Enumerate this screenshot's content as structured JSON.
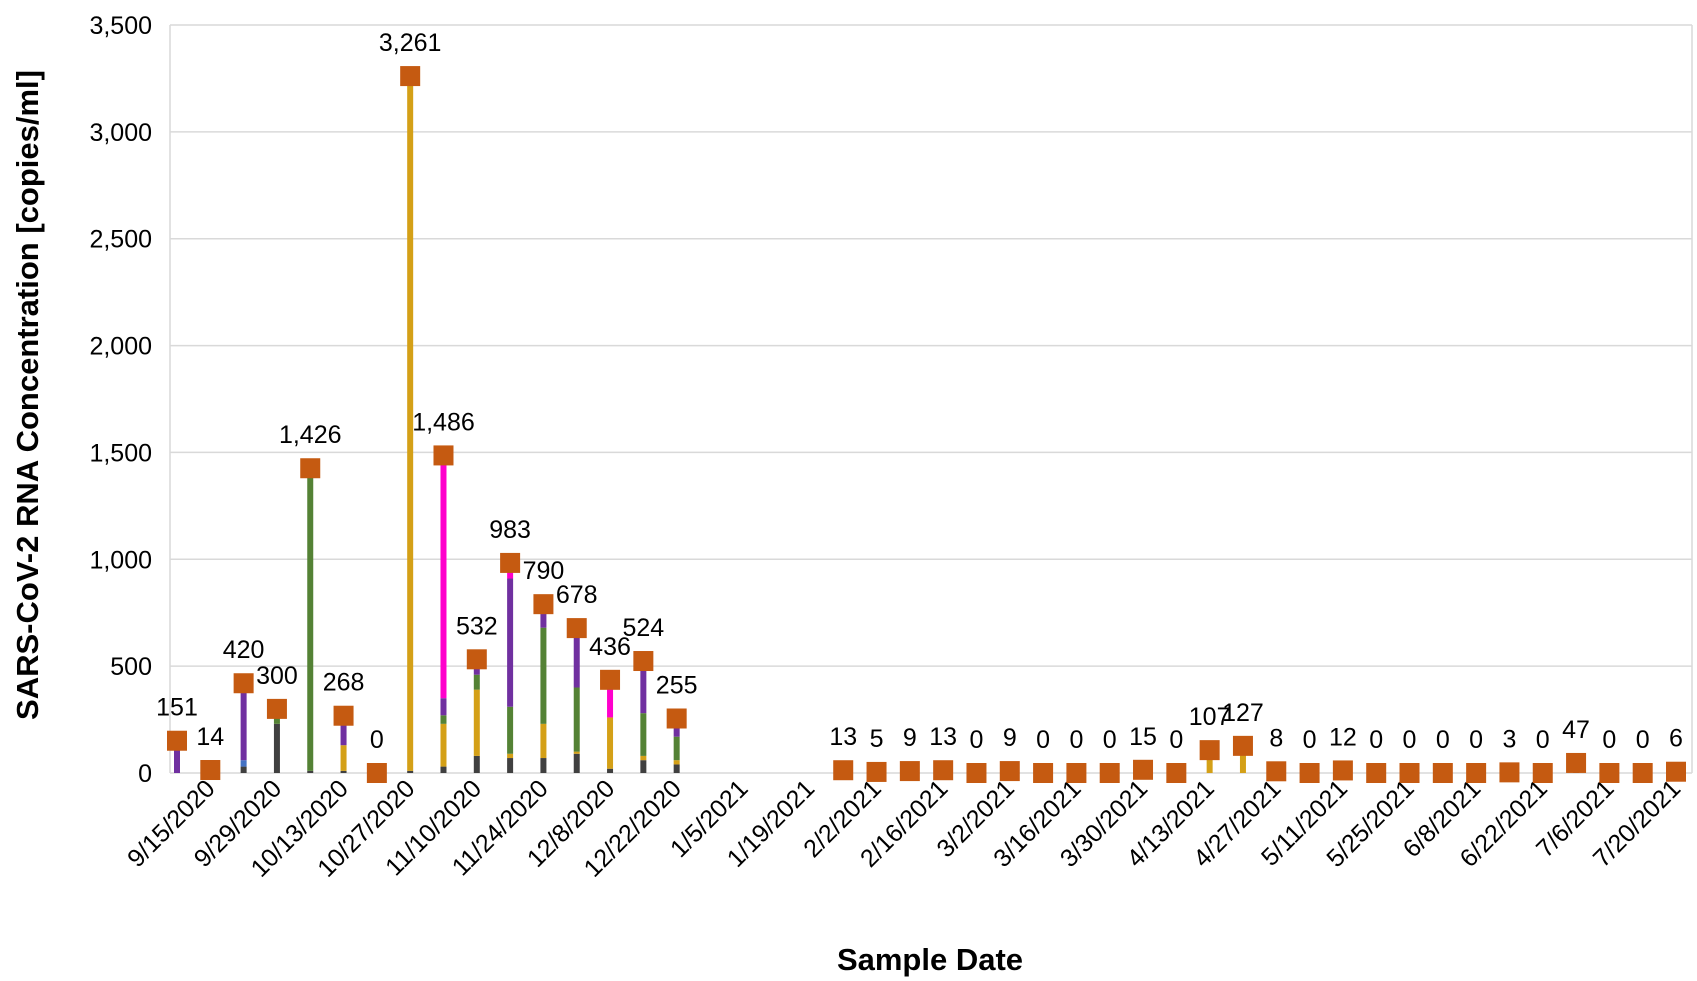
{
  "chart_data": {
    "type": "bar",
    "xlabel": "Sample Date",
    "ylabel": "SARS-CoV-2 RNA Concentration [copies/ml]",
    "ylim": [
      0,
      3500
    ],
    "y_ticks": [
      0,
      500,
      1000,
      1500,
      2000,
      2500,
      3000,
      3500
    ],
    "y_tick_labels": [
      "0",
      "500",
      "1,000",
      "1,500",
      "2,000",
      "2,500",
      "3,000",
      "3,500"
    ],
    "grid": true,
    "x_tick_labels": [
      "9/15/2020",
      "9/29/2020",
      "10/13/2020",
      "10/27/2020",
      "11/10/2020",
      "11/24/2020",
      "12/8/2020",
      "12/22/2020",
      "1/5/2021",
      "1/19/2021",
      "2/2/2021",
      "2/16/2021",
      "3/2/2021",
      "3/16/2021",
      "3/30/2021",
      "4/13/2021",
      "4/27/2021",
      "5/11/2021",
      "5/25/2021",
      "6/8/2021",
      "6/22/2021",
      "7/6/2021",
      "7/20/2021"
    ],
    "axis_start": "2020-09-08",
    "axis_end": "2021-07-20",
    "marker_color": "#C55A11",
    "segment_colors": {
      "dark": "#404040",
      "purple": "#7030A0",
      "green": "#548235",
      "gold": "#D4A017",
      "magenta": "#FF00CC",
      "blue": "#4472C4"
    },
    "points": [
      {
        "date": "2020-09-08",
        "value": 151,
        "label": "151",
        "segments": [
          {
            "color": "purple",
            "value": 151
          }
        ]
      },
      {
        "date": "2020-09-15",
        "value": 14,
        "label": "14",
        "segments": [
          {
            "color": "purple",
            "value": 14
          }
        ]
      },
      {
        "date": "2020-09-22",
        "value": 420,
        "label": "420",
        "segments": [
          {
            "color": "dark",
            "value": 30
          },
          {
            "color": "blue",
            "value": 30
          },
          {
            "color": "purple",
            "value": 360
          }
        ]
      },
      {
        "date": "2020-09-29",
        "value": 300,
        "label": "300",
        "segments": [
          {
            "color": "dark",
            "value": 230
          },
          {
            "color": "green",
            "value": 70
          }
        ]
      },
      {
        "date": "2020-10-06",
        "value": 1426,
        "label": "1,426",
        "segments": [
          {
            "color": "dark",
            "value": 10
          },
          {
            "color": "green",
            "value": 1386
          },
          {
            "color": "purple",
            "value": 30
          }
        ]
      },
      {
        "date": "2020-10-13",
        "value": 268,
        "label": "268",
        "segments": [
          {
            "color": "dark",
            "value": 10
          },
          {
            "color": "gold",
            "value": 120
          },
          {
            "color": "purple",
            "value": 138
          }
        ]
      },
      {
        "date": "2020-10-20",
        "value": 0,
        "label": "0",
        "segments": []
      },
      {
        "date": "2020-10-27",
        "value": 3261,
        "label": "3,261",
        "segments": [
          {
            "color": "dark",
            "value": 10
          },
          {
            "color": "gold",
            "value": 3251
          }
        ]
      },
      {
        "date": "2020-11-03",
        "value": 1486,
        "label": "1,486",
        "segments": [
          {
            "color": "dark",
            "value": 30
          },
          {
            "color": "gold",
            "value": 200
          },
          {
            "color": "green",
            "value": 40
          },
          {
            "color": "purple",
            "value": 80
          },
          {
            "color": "magenta",
            "value": 1136
          }
        ]
      },
      {
        "date": "2020-11-10",
        "value": 532,
        "label": "532",
        "segments": [
          {
            "color": "dark",
            "value": 80
          },
          {
            "color": "gold",
            "value": 310
          },
          {
            "color": "green",
            "value": 70
          },
          {
            "color": "purple",
            "value": 72
          }
        ]
      },
      {
        "date": "2020-11-17",
        "value": 983,
        "label": "983",
        "segments": [
          {
            "color": "dark",
            "value": 70
          },
          {
            "color": "gold",
            "value": 20
          },
          {
            "color": "green",
            "value": 220
          },
          {
            "color": "purple",
            "value": 600
          },
          {
            "color": "magenta",
            "value": 73
          }
        ]
      },
      {
        "date": "2020-11-24",
        "value": 790,
        "label": "790",
        "segments": [
          {
            "color": "dark",
            "value": 70
          },
          {
            "color": "gold",
            "value": 160
          },
          {
            "color": "green",
            "value": 450
          },
          {
            "color": "purple",
            "value": 110
          }
        ]
      },
      {
        "date": "2020-12-01",
        "value": 678,
        "label": "678",
        "segments": [
          {
            "color": "dark",
            "value": 90
          },
          {
            "color": "gold",
            "value": 10
          },
          {
            "color": "green",
            "value": 300
          },
          {
            "color": "purple",
            "value": 278
          }
        ]
      },
      {
        "date": "2020-12-08",
        "value": 436,
        "label": "436",
        "segments": [
          {
            "color": "dark",
            "value": 20
          },
          {
            "color": "gold",
            "value": 240
          },
          {
            "color": "magenta",
            "value": 176
          }
        ]
      },
      {
        "date": "2020-12-15",
        "value": 524,
        "label": "524",
        "segments": [
          {
            "color": "dark",
            "value": 60
          },
          {
            "color": "gold",
            "value": 20
          },
          {
            "color": "green",
            "value": 200
          },
          {
            "color": "purple",
            "value": 244
          }
        ]
      },
      {
        "date": "2020-12-22",
        "value": 255,
        "label": "255",
        "segments": [
          {
            "color": "dark",
            "value": 40
          },
          {
            "color": "gold",
            "value": 20
          },
          {
            "color": "green",
            "value": 110
          },
          {
            "color": "purple",
            "value": 85
          }
        ]
      },
      {
        "date": "2021-01-26",
        "value": 13,
        "label": "13",
        "segments": []
      },
      {
        "date": "2021-02-02",
        "value": 5,
        "label": "5",
        "segments": []
      },
      {
        "date": "2021-02-09",
        "value": 9,
        "label": "9",
        "segments": []
      },
      {
        "date": "2021-02-16",
        "value": 13,
        "label": "13",
        "segments": []
      },
      {
        "date": "2021-02-23",
        "value": 0,
        "label": "0",
        "segments": []
      },
      {
        "date": "2021-03-02",
        "value": 9,
        "label": "9",
        "segments": []
      },
      {
        "date": "2021-03-09",
        "value": 0,
        "label": "0",
        "segments": []
      },
      {
        "date": "2021-03-16",
        "value": 0,
        "label": "0",
        "segments": []
      },
      {
        "date": "2021-03-23",
        "value": 0,
        "label": "0",
        "segments": []
      },
      {
        "date": "2021-03-30",
        "value": 15,
        "label": "15",
        "segments": []
      },
      {
        "date": "2021-04-06",
        "value": 0,
        "label": "0",
        "segments": []
      },
      {
        "date": "2021-04-13",
        "value": 107,
        "label": "107",
        "segments": [
          {
            "color": "gold",
            "value": 107
          }
        ]
      },
      {
        "date": "2021-04-20",
        "value": 127,
        "label": "127",
        "segments": [
          {
            "color": "gold",
            "value": 127
          }
        ]
      },
      {
        "date": "2021-04-27",
        "value": 8,
        "label": "8",
        "segments": []
      },
      {
        "date": "2021-05-04",
        "value": 0,
        "label": "0",
        "segments": []
      },
      {
        "date": "2021-05-11",
        "value": 12,
        "label": "12",
        "segments": []
      },
      {
        "date": "2021-05-18",
        "value": 0,
        "label": "0",
        "segments": []
      },
      {
        "date": "2021-05-25",
        "value": 0,
        "label": "0",
        "segments": []
      },
      {
        "date": "2021-06-01",
        "value": 0,
        "label": "0",
        "segments": []
      },
      {
        "date": "2021-06-08",
        "value": 0,
        "label": "0",
        "segments": []
      },
      {
        "date": "2021-06-15",
        "value": 3,
        "label": "3",
        "segments": []
      },
      {
        "date": "2021-06-22",
        "value": 0,
        "label": "0",
        "segments": []
      },
      {
        "date": "2021-06-29",
        "value": 47,
        "label": "47",
        "segments": [
          {
            "color": "dark",
            "value": 10
          }
        ]
      },
      {
        "date": "2021-07-06",
        "value": 0,
        "label": "0",
        "segments": []
      },
      {
        "date": "2021-07-13",
        "value": 0,
        "label": "0",
        "segments": []
      },
      {
        "date": "2021-07-20",
        "value": 6,
        "label": "6",
        "segments": []
      }
    ]
  }
}
